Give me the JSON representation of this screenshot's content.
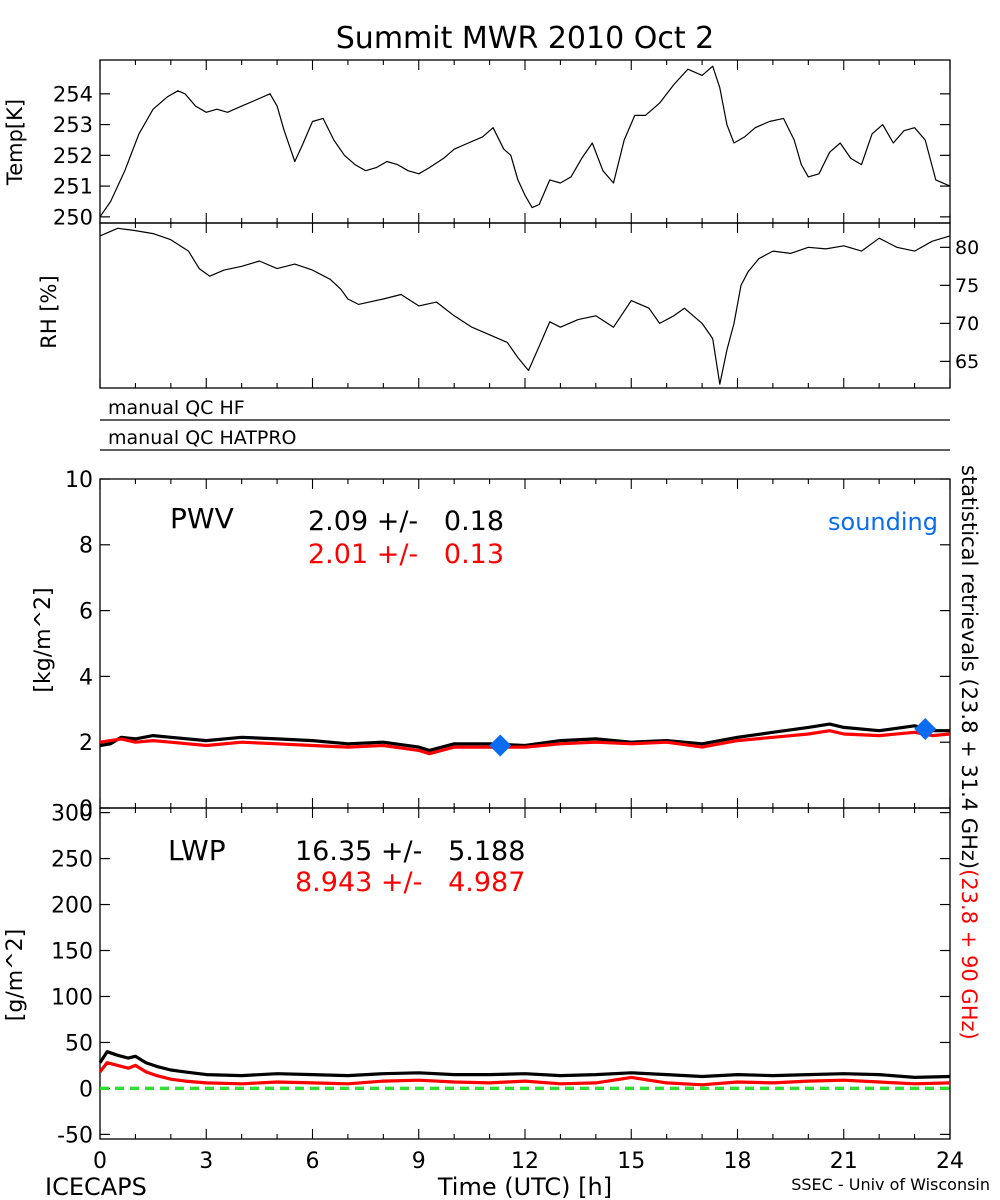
{
  "chart_data": [
    {
      "type": "line",
      "title": "Summit MWR 2010 Oct  2",
      "ylabel": "Temp[K]",
      "xlim": [
        0,
        24
      ],
      "ylim": [
        249.8,
        255.1
      ],
      "yticks": [
        "250",
        "251",
        "252",
        "253",
        "254"
      ],
      "series": [
        {
          "color": "#000000",
          "x": [
            0,
            0.3,
            0.7,
            1.1,
            1.5,
            1.9,
            2.2,
            2.4,
            2.7,
            3.0,
            3.3,
            3.6,
            4.0,
            4.4,
            4.8,
            5.0,
            5.2,
            5.5,
            5.7,
            6.0,
            6.3,
            6.6,
            6.9,
            7.2,
            7.5,
            7.8,
            8.1,
            8.4,
            8.7,
            9.0,
            9.3,
            9.7,
            10.0,
            10.4,
            10.8,
            11.1,
            11.4,
            11.6,
            11.8,
            12.0,
            12.2,
            12.4,
            12.7,
            13.0,
            13.3,
            13.6,
            13.9,
            14.2,
            14.5,
            14.8,
            15.1,
            15.4,
            15.8,
            16.2,
            16.6,
            17.0,
            17.3,
            17.5,
            17.7,
            17.9,
            18.2,
            18.5,
            18.9,
            19.3,
            19.6,
            19.8,
            20.0,
            20.3,
            20.6,
            20.9,
            21.2,
            21.5,
            21.8,
            22.1,
            22.4,
            22.7,
            23.0,
            23.3,
            23.6,
            24.0
          ],
          "y": [
            250.0,
            250.5,
            251.5,
            252.7,
            253.5,
            253.9,
            254.1,
            254.0,
            253.6,
            253.4,
            253.5,
            253.4,
            253.6,
            253.8,
            254.0,
            253.6,
            252.8,
            251.8,
            252.3,
            253.1,
            253.2,
            252.5,
            252.0,
            251.7,
            251.5,
            251.6,
            251.8,
            251.7,
            251.5,
            251.4,
            251.6,
            251.9,
            252.2,
            252.4,
            252.6,
            252.9,
            252.2,
            252.0,
            251.2,
            250.7,
            250.3,
            250.4,
            251.2,
            251.1,
            251.3,
            251.9,
            252.4,
            251.5,
            251.1,
            252.5,
            253.3,
            253.3,
            253.7,
            254.3,
            254.8,
            254.6,
            254.9,
            254.2,
            253.0,
            252.4,
            252.6,
            252.9,
            253.1,
            253.2,
            252.5,
            251.7,
            251.3,
            251.4,
            252.1,
            252.4,
            251.9,
            251.7,
            252.7,
            253.0,
            252.4,
            252.8,
            252.9,
            252.5,
            251.2,
            251.0
          ]
        }
      ]
    },
    {
      "type": "line",
      "ylabel": "RH [%]",
      "xlim": [
        0,
        24
      ],
      "ylim": [
        61.5,
        83.2
      ],
      "yticks": [
        "65",
        "70",
        "75",
        "80"
      ],
      "series": [
        {
          "color": "#000000",
          "x": [
            0,
            0.5,
            1.0,
            1.5,
            2.0,
            2.5,
            2.8,
            3.1,
            3.5,
            4.0,
            4.5,
            5.0,
            5.5,
            6.0,
            6.5,
            6.8,
            7.0,
            7.3,
            7.6,
            8.0,
            8.5,
            9.0,
            9.5,
            10.0,
            10.5,
            11.0,
            11.5,
            11.8,
            12.1,
            12.4,
            12.7,
            13.0,
            13.5,
            14.0,
            14.5,
            15.0,
            15.5,
            15.8,
            16.2,
            16.5,
            17.0,
            17.3,
            17.5,
            17.7,
            17.9,
            18.1,
            18.3,
            18.6,
            19.0,
            19.5,
            20.0,
            20.5,
            21.0,
            21.5,
            22.0,
            22.5,
            23.0,
            23.5,
            24.0
          ],
          "y": [
            81.5,
            82.5,
            82.2,
            81.8,
            81.0,
            79.5,
            77.2,
            76.2,
            77.0,
            77.5,
            78.2,
            77.2,
            77.8,
            77.0,
            75.8,
            74.5,
            73.2,
            72.5,
            72.8,
            73.2,
            73.8,
            72.3,
            72.8,
            71.0,
            69.5,
            68.5,
            67.5,
            65.5,
            63.8,
            67.0,
            70.2,
            69.5,
            70.5,
            71.0,
            69.5,
            73.0,
            72.0,
            70.0,
            71.0,
            72.0,
            70.0,
            68.0,
            62.0,
            66.5,
            70.0,
            75.0,
            76.8,
            78.5,
            79.5,
            79.2,
            80.0,
            79.8,
            80.2,
            79.5,
            81.2,
            80.0,
            79.5,
            80.8,
            81.5
          ]
        }
      ]
    },
    {
      "type": "line",
      "ylabel": "[kg/m^2]",
      "xlim": [
        0,
        24
      ],
      "ylim": [
        0,
        10
      ],
      "yticks": [
        "0",
        "2",
        "4",
        "6",
        "8",
        "10"
      ],
      "annotations": {
        "label": "PWV",
        "black_stats": "2.09 +/-   0.18",
        "red_stats": "2.01 +/-   0.13",
        "sounding_label": "sounding"
      },
      "sounding_points": [
        {
          "x": 11.3,
          "y": 1.9
        },
        {
          "x": 23.3,
          "y": 2.4
        }
      ],
      "series": [
        {
          "color": "#000000",
          "x": [
            0,
            0.3,
            0.6,
            1.0,
            1.5,
            2.0,
            3.0,
            4.0,
            5.0,
            6.0,
            7.0,
            8.0,
            9.0,
            9.3,
            10.0,
            11.0,
            12.0,
            13.0,
            14.0,
            15.0,
            16.0,
            17.0,
            17.5,
            18.0,
            19.0,
            20.0,
            20.6,
            21.0,
            22.0,
            23.0,
            23.5,
            24.0
          ],
          "y": [
            1.9,
            1.95,
            2.15,
            2.1,
            2.2,
            2.15,
            2.05,
            2.15,
            2.1,
            2.05,
            1.95,
            2.0,
            1.85,
            1.75,
            1.95,
            1.95,
            1.9,
            2.05,
            2.1,
            2.0,
            2.05,
            1.95,
            2.05,
            2.15,
            2.3,
            2.45,
            2.55,
            2.45,
            2.35,
            2.5,
            2.35,
            2.35
          ]
        },
        {
          "color": "#ff0000",
          "x": [
            0,
            0.3,
            0.6,
            1.0,
            1.5,
            2.0,
            3.0,
            4.0,
            5.0,
            6.0,
            7.0,
            8.0,
            9.0,
            9.3,
            10.0,
            11.0,
            12.0,
            13.0,
            14.0,
            15.0,
            16.0,
            17.0,
            17.5,
            18.0,
            19.0,
            20.0,
            20.6,
            21.0,
            22.0,
            23.0,
            23.5,
            24.0
          ],
          "y": [
            2.0,
            2.05,
            2.1,
            2.0,
            2.05,
            2.0,
            1.9,
            2.0,
            1.95,
            1.9,
            1.85,
            1.9,
            1.75,
            1.65,
            1.85,
            1.85,
            1.85,
            1.95,
            2.0,
            1.95,
            2.0,
            1.85,
            1.95,
            2.05,
            2.15,
            2.25,
            2.35,
            2.25,
            2.2,
            2.3,
            2.2,
            2.25
          ]
        }
      ]
    },
    {
      "type": "line",
      "ylabel": "[g/m^2]",
      "xlabel": "Time (UTC) [h]",
      "xlim": [
        0,
        24
      ],
      "xticks": [
        "0",
        "3",
        "6",
        "9",
        "12",
        "15",
        "18",
        "21",
        "24"
      ],
      "ylim": [
        -55,
        305
      ],
      "yticks": [
        "-50",
        "0",
        "50",
        "100",
        "150",
        "200",
        "250",
        "300"
      ],
      "annotations": {
        "label": "LWP",
        "black_stats": "16.35 +/-   5.188",
        "red_stats": "8.943 +/-   4.987"
      },
      "reference_line": {
        "y": 0,
        "color": "#33dd33",
        "style": "dashed"
      },
      "series": [
        {
          "color": "#000000",
          "x": [
            0,
            0.2,
            0.5,
            0.8,
            1.0,
            1.3,
            1.6,
            2.0,
            2.4,
            3.0,
            4.0,
            5.0,
            6.0,
            7.0,
            8.0,
            9.0,
            10.0,
            11.0,
            12.0,
            13.0,
            14.0,
            15.0,
            16.0,
            17.0,
            18.0,
            19.0,
            20.0,
            21.0,
            22.0,
            23.0,
            24.0
          ],
          "y": [
            28,
            40,
            36,
            33,
            35,
            28,
            24,
            20,
            18,
            15,
            14,
            16,
            15,
            14,
            16,
            17,
            15,
            15,
            16,
            14,
            15,
            17,
            15,
            13,
            15,
            14,
            15,
            16,
            15,
            12,
            13
          ]
        },
        {
          "color": "#ff0000",
          "x": [
            0,
            0.2,
            0.5,
            0.8,
            1.0,
            1.3,
            1.6,
            2.0,
            2.4,
            3.0,
            4.0,
            5.0,
            6.0,
            7.0,
            8.0,
            9.0,
            10.0,
            11.0,
            12.0,
            13.0,
            14.0,
            15.0,
            16.0,
            17.0,
            18.0,
            19.0,
            20.0,
            21.0,
            22.0,
            23.0,
            24.0
          ],
          "y": [
            18,
            28,
            25,
            22,
            25,
            18,
            14,
            10,
            8,
            6,
            5,
            7,
            6,
            5,
            8,
            9,
            7,
            6,
            8,
            5,
            6,
            12,
            6,
            4,
            7,
            6,
            8,
            9,
            7,
            5,
            6
          ]
        }
      ]
    }
  ],
  "qc_rows": [
    "manual QC HF",
    "manual QC HATPRO"
  ],
  "right_axis_label": {
    "black": "statistical retrievals (23.8 + 31.4 GHz)",
    "red": "(23.8 + 90 GHz)"
  },
  "footer": {
    "left": "ICECAPS",
    "center": "Time (UTC) [h]",
    "right": "SSEC - Univ of Wisconsin"
  },
  "colors": {
    "accent_red": "#ff0000",
    "sounding_blue": "#0a6cf0",
    "zero_line_green": "#33dd33"
  }
}
